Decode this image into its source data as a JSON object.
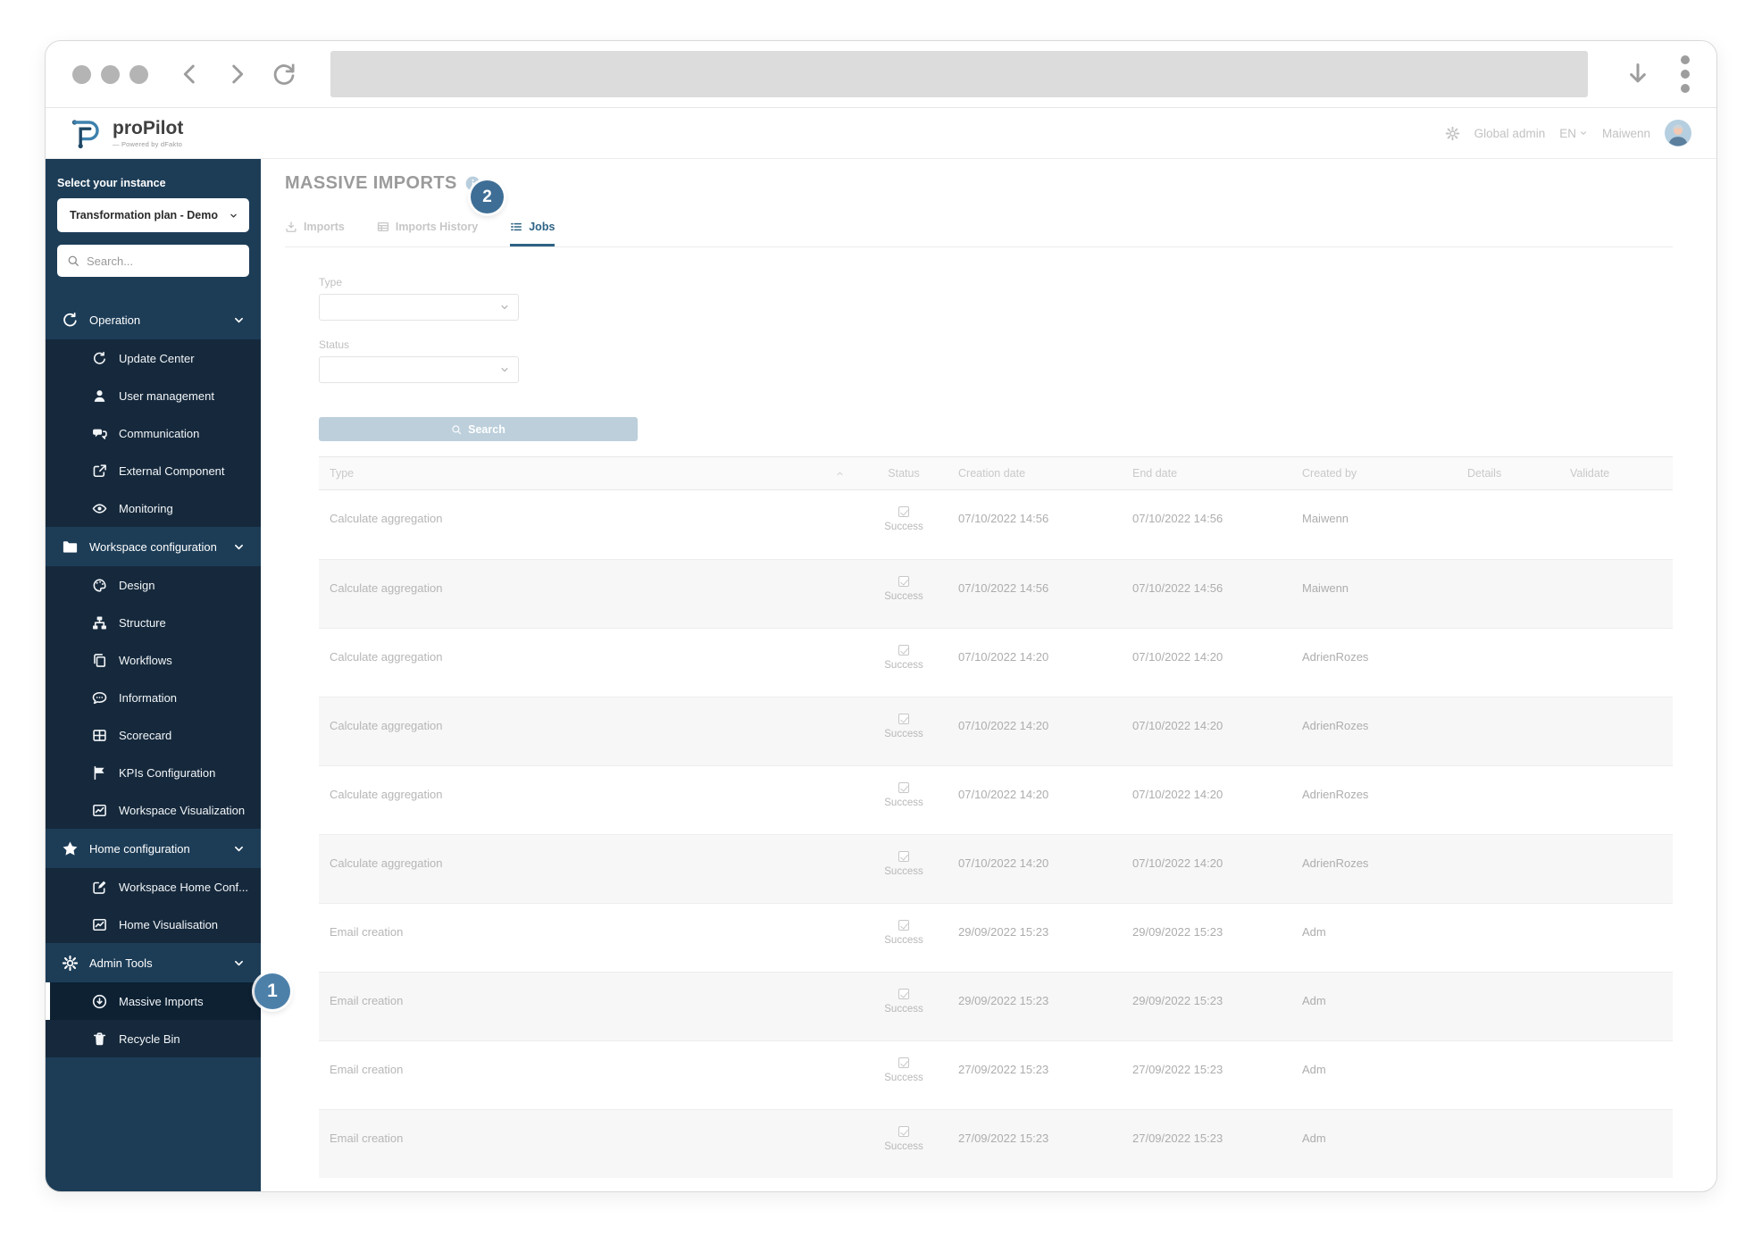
{
  "browser": {
    "url_value": ""
  },
  "header": {
    "brand": "proPilot",
    "brand_tagline": "— Powered by dFakto",
    "right": {
      "role_label": "Global admin",
      "language": "EN",
      "username": "Maiwenn"
    }
  },
  "sidebar": {
    "instance_label": "Select your instance",
    "instance_value": "Transformation plan - Demo",
    "search_placeholder": "Search...",
    "sections": [
      {
        "label": "Operation",
        "icon": "refresh",
        "items": [
          {
            "label": "Update Center",
            "icon": "refresh"
          },
          {
            "label": "User management",
            "icon": "user"
          },
          {
            "label": "Communication",
            "icon": "chat"
          },
          {
            "label": "External Component",
            "icon": "external"
          },
          {
            "label": "Monitoring",
            "icon": "eye"
          }
        ]
      },
      {
        "label": "Workspace configuration",
        "icon": "folder",
        "items": [
          {
            "label": "Design",
            "icon": "palette"
          },
          {
            "label": "Structure",
            "icon": "sitemap"
          },
          {
            "label": "Workflows",
            "icon": "copy"
          },
          {
            "label": "Information",
            "icon": "comment"
          },
          {
            "label": "Scorecard",
            "icon": "grid"
          },
          {
            "label": "KPIs Configuration",
            "icon": "flag"
          },
          {
            "label": "Workspace Visualization",
            "icon": "chart"
          }
        ]
      },
      {
        "label": "Home configuration",
        "icon": "star",
        "items": [
          {
            "label": "Workspace Home Conf...",
            "icon": "edit"
          },
          {
            "label": "Home Visualisation",
            "icon": "chart"
          }
        ]
      },
      {
        "label": "Admin Tools",
        "icon": "gear",
        "items": [
          {
            "label": "Massive Imports",
            "icon": "download-circle",
            "active": true
          },
          {
            "label": "Recycle Bin",
            "icon": "trash"
          }
        ]
      }
    ]
  },
  "main": {
    "title": "MASSIVE IMPORTS",
    "tabs": [
      {
        "label": "Imports",
        "icon": "download"
      },
      {
        "label": "Imports History",
        "icon": "table"
      },
      {
        "label": "Jobs",
        "icon": "list",
        "active": true
      }
    ],
    "filters": {
      "type_label": "Type",
      "status_label": "Status",
      "search_label": "Search"
    },
    "table": {
      "columns": [
        "Type",
        "Status",
        "Creation date",
        "End date",
        "Created by",
        "Details",
        "Validate"
      ],
      "rows": [
        {
          "type": "Calculate aggregation",
          "status": "Success",
          "creation_date": "07/10/2022 14:56",
          "end_date": "07/10/2022 14:56",
          "created_by": "Maiwenn",
          "details": "",
          "validate": ""
        },
        {
          "type": "Calculate aggregation",
          "status": "Success",
          "creation_date": "07/10/2022 14:56",
          "end_date": "07/10/2022 14:56",
          "created_by": "Maiwenn",
          "details": "",
          "validate": ""
        },
        {
          "type": "Calculate aggregation",
          "status": "Success",
          "creation_date": "07/10/2022 14:20",
          "end_date": "07/10/2022 14:20",
          "created_by": "AdrienRozes",
          "details": "",
          "validate": ""
        },
        {
          "type": "Calculate aggregation",
          "status": "Success",
          "creation_date": "07/10/2022 14:20",
          "end_date": "07/10/2022 14:20",
          "created_by": "AdrienRozes",
          "details": "",
          "validate": ""
        },
        {
          "type": "Calculate aggregation",
          "status": "Success",
          "creation_date": "07/10/2022 14:20",
          "end_date": "07/10/2022 14:20",
          "created_by": "AdrienRozes",
          "details": "",
          "validate": ""
        },
        {
          "type": "Calculate aggregation",
          "status": "Success",
          "creation_date": "07/10/2022 14:20",
          "end_date": "07/10/2022 14:20",
          "created_by": "AdrienRozes",
          "details": "",
          "validate": ""
        },
        {
          "type": "Email creation",
          "status": "Success",
          "creation_date": "29/09/2022 15:23",
          "end_date": "29/09/2022 15:23",
          "created_by": "Adm",
          "details": "",
          "validate": ""
        },
        {
          "type": "Email creation",
          "status": "Success",
          "creation_date": "29/09/2022 15:23",
          "end_date": "29/09/2022 15:23",
          "created_by": "Adm",
          "details": "",
          "validate": ""
        },
        {
          "type": "Email creation",
          "status": "Success",
          "creation_date": "27/09/2022 15:23",
          "end_date": "27/09/2022 15:23",
          "created_by": "Adm",
          "details": "",
          "validate": ""
        },
        {
          "type": "Email creation",
          "status": "Success",
          "creation_date": "27/09/2022 15:23",
          "end_date": "27/09/2022 15:23",
          "created_by": "Adm",
          "details": "",
          "validate": ""
        }
      ]
    }
  },
  "callouts": [
    {
      "number": "1"
    },
    {
      "number": "2"
    }
  ],
  "colors": {
    "sidebar_bg": "#1d3d57",
    "sidebar_panel_bg": "#16293c",
    "sidebar_active_bg": "#0d2133",
    "accent_blue": "#2e6385",
    "callout_badge_blue": "#45769d",
    "search_button_bg": "#bccfdb",
    "logo_blue_light": "#3e81ad",
    "logo_blue_dark": "#1f4866"
  }
}
